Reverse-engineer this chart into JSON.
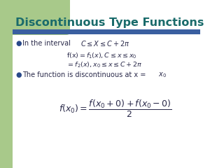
{
  "title": "Discontinuous Type Functions",
  "title_color": "#1a6b6b",
  "title_fontsize": 11.5,
  "bar_color": "#3a5fa0",
  "bg_white": "#ffffff",
  "bg_green": "#a8c98a",
  "bullet_color": "#2a4a8a",
  "body_text_color": "#2a2a4a",
  "interval_label": "In the interval",
  "interval_formula": "$C \\leq X \\leq C+2\\pi$",
  "fx_line1": "$\\mathrm{f(x)} = f_1(x), C \\leq x \\leq x_0$",
  "fx_line2": "$= f_2(x), x_0 \\leq x \\leq C + 2\\pi$",
  "disc_text": "The function is discontinuous at x =x",
  "bottom_formula": "$f(x_0) = \\dfrac{f(x_0+0)+ f(x_0-0)}{2}$"
}
